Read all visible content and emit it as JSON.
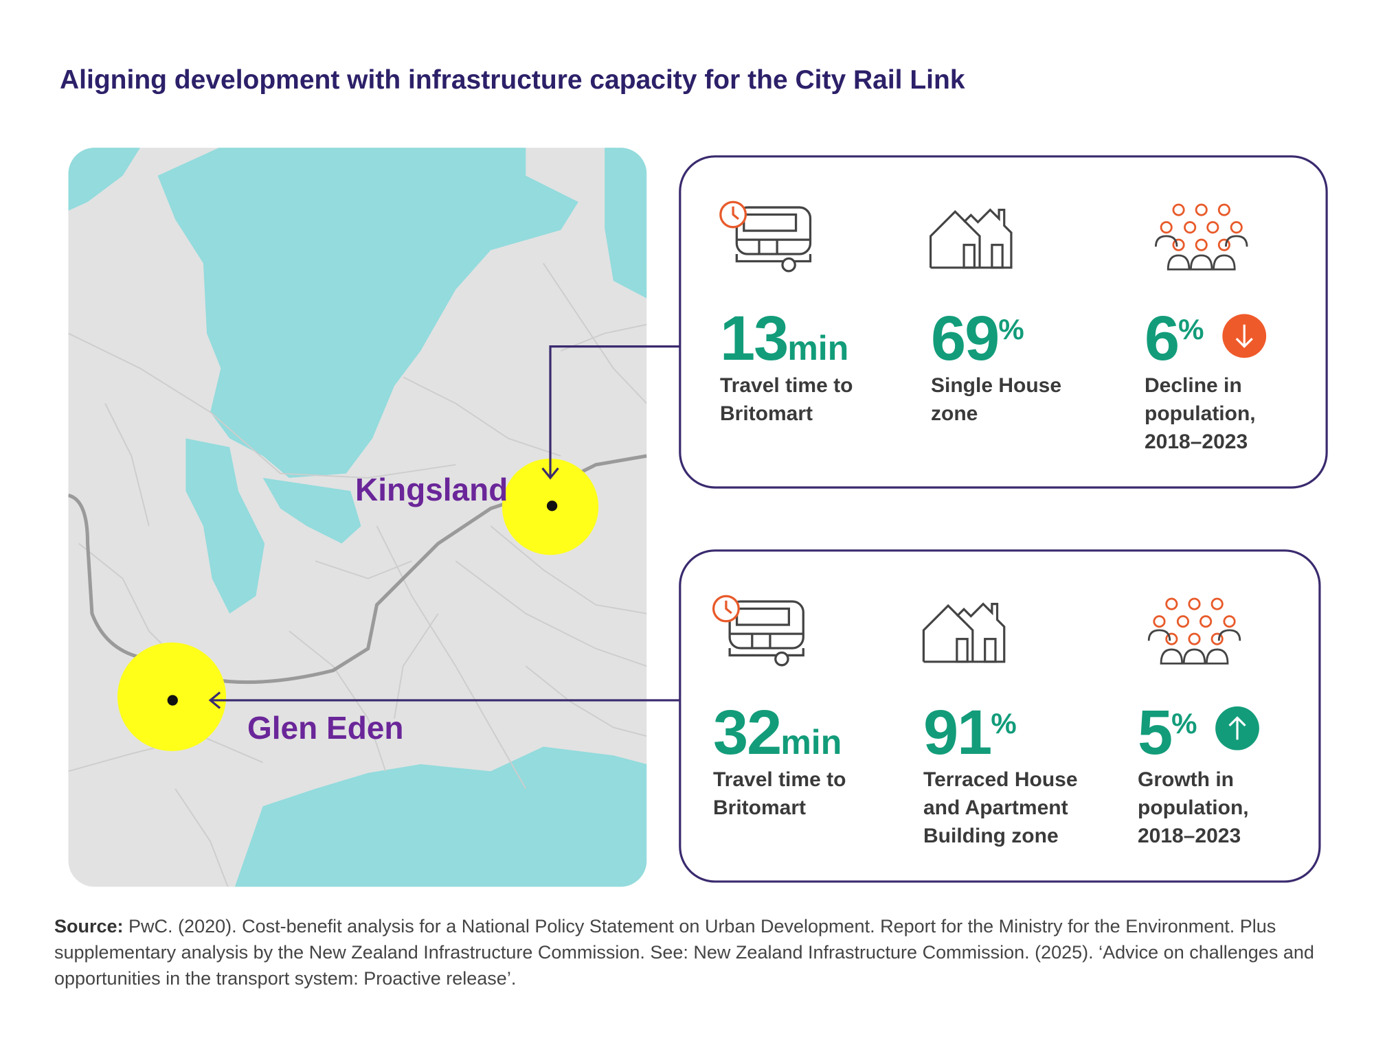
{
  "title": "Aligning development with infrastructure capacity for the City Rail Link",
  "map": {
    "places": [
      "Kingsland",
      "Glen Eden"
    ]
  },
  "panels": [
    {
      "stats": [
        {
          "value": "13",
          "unit": "min",
          "label": "Travel time to Britomart"
        },
        {
          "value": "69",
          "unit": "%",
          "label": "Single House zone"
        },
        {
          "value": "6",
          "unit": "%",
          "label": "Decline in population, 2018–2023"
        }
      ]
    },
    {
      "stats": [
        {
          "value": "32",
          "unit": "min",
          "label": "Travel time to Britomart"
        },
        {
          "value": "91",
          "unit": "%",
          "label": "Terraced House and Apartment Building zone"
        },
        {
          "value": "5",
          "unit": "%",
          "label": "Growth in population, 2018–2023"
        }
      ]
    }
  ],
  "source": {
    "label": "Source:",
    "text": "PwC. (2020). Cost-benefit analysis for a National Policy Statement on Urban Development. Report for the Ministry for the Environment. Plus supplementary analysis by the New Zealand Infrastructure Commission. See: New Zealand Infrastructure Commission. (2025). ‘Advice on challenges and opportunities in the transport system: Proactive release’."
  }
}
